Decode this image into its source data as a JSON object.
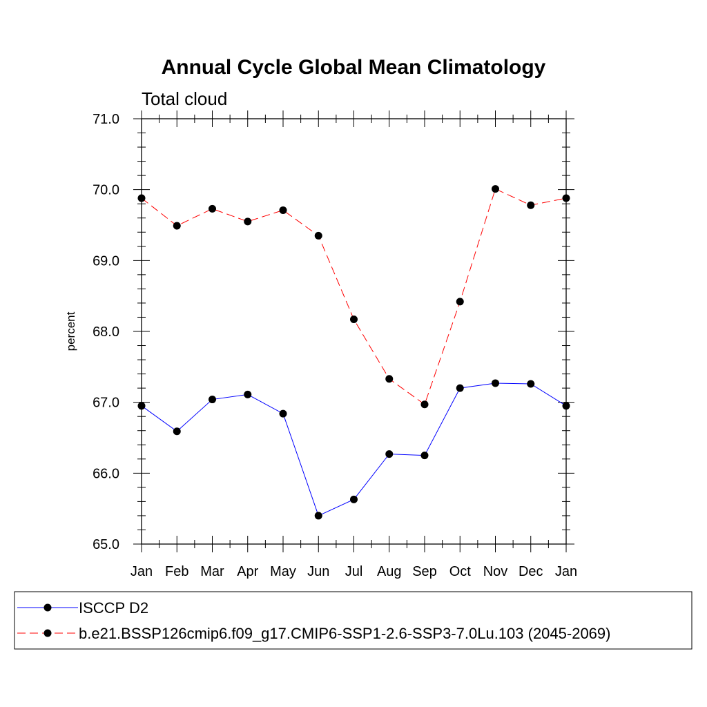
{
  "chart_data": {
    "type": "line",
    "title": "Annual Cycle Global Mean Climatology",
    "subtitle": "Total cloud",
    "xlabel": "",
    "ylabel": "percent",
    "categories": [
      "Jan",
      "Feb",
      "Mar",
      "Apr",
      "May",
      "Jun",
      "Jul",
      "Aug",
      "Sep",
      "Oct",
      "Nov",
      "Dec",
      "Jan"
    ],
    "ylim": [
      65.0,
      71.0
    ],
    "yticks": [
      "65.0",
      "66.0",
      "67.0",
      "68.0",
      "69.0",
      "70.0",
      "71.0"
    ],
    "grid": false,
    "legend_position": "bottom",
    "series": [
      {
        "name": "ISCCP D2",
        "color": "#0000ff",
        "line_style": "solid",
        "marker": "filled-circle",
        "values": [
          66.95,
          66.59,
          67.04,
          67.11,
          66.84,
          65.4,
          65.63,
          66.27,
          66.25,
          67.2,
          67.27,
          67.26,
          66.95
        ]
      },
      {
        "name": "b.e21.BSSP126cmip6.f09_g17.CMIP6-SSP1-2.6-SSP3-7.0Lu.103 (2045-2069)",
        "color": "#ff0000",
        "line_style": "dashed",
        "marker": "filled-circle",
        "values": [
          69.88,
          69.49,
          69.73,
          69.55,
          69.71,
          69.35,
          68.17,
          67.33,
          66.97,
          68.42,
          70.01,
          69.78,
          69.88
        ]
      }
    ]
  }
}
